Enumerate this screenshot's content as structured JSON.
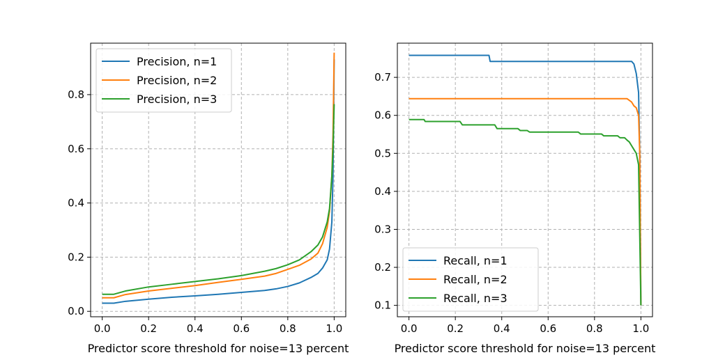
{
  "chart_data": [
    {
      "type": "line",
      "xlabel": "Predictor score threshold for noise=13 percent",
      "ylabel": "",
      "xlim": [
        -0.05,
        1.05
      ],
      "ylim": [
        -0.02,
        0.99
      ],
      "xticks": [
        0.0,
        0.2,
        0.4,
        0.6,
        0.8,
        1.0
      ],
      "xtick_labels": [
        "0.0",
        "0.2",
        "0.4",
        "0.6",
        "0.8",
        "1.0"
      ],
      "yticks": [
        0.0,
        0.2,
        0.4,
        0.6,
        0.8
      ],
      "ytick_labels": [
        "0.0",
        "0.2",
        "0.4",
        "0.6",
        "0.8"
      ],
      "grid": true,
      "legend_position": "upper-left",
      "series": [
        {
          "name": "Precision, n=1",
          "color": "#1f77b4",
          "x": [
            0.0,
            0.05,
            0.1,
            0.2,
            0.3,
            0.4,
            0.5,
            0.6,
            0.7,
            0.75,
            0.8,
            0.85,
            0.9,
            0.93,
            0.95,
            0.97,
            0.98,
            0.99,
            0.995,
            1.0
          ],
          "y": [
            0.03,
            0.03,
            0.037,
            0.045,
            0.052,
            0.057,
            0.063,
            0.07,
            0.077,
            0.083,
            0.092,
            0.105,
            0.125,
            0.14,
            0.16,
            0.19,
            0.23,
            0.33,
            0.5,
            0.93
          ]
        },
        {
          "name": "Precision, n=2",
          "color": "#ff7f0e",
          "x": [
            0.0,
            0.05,
            0.1,
            0.2,
            0.3,
            0.4,
            0.5,
            0.6,
            0.7,
            0.75,
            0.8,
            0.85,
            0.9,
            0.93,
            0.95,
            0.97,
            0.98,
            0.99,
            0.995,
            1.0
          ],
          "y": [
            0.05,
            0.05,
            0.062,
            0.075,
            0.085,
            0.095,
            0.107,
            0.118,
            0.13,
            0.14,
            0.155,
            0.17,
            0.193,
            0.215,
            0.25,
            0.31,
            0.37,
            0.5,
            0.65,
            0.955
          ]
        },
        {
          "name": "Precision, n=3",
          "color": "#2ca02c",
          "x": [
            0.0,
            0.05,
            0.1,
            0.2,
            0.3,
            0.4,
            0.5,
            0.6,
            0.7,
            0.75,
            0.8,
            0.85,
            0.9,
            0.93,
            0.95,
            0.97,
            0.98,
            0.99,
            0.995,
            1.0
          ],
          "y": [
            0.063,
            0.063,
            0.075,
            0.09,
            0.1,
            0.11,
            0.12,
            0.132,
            0.148,
            0.158,
            0.172,
            0.19,
            0.22,
            0.245,
            0.275,
            0.33,
            0.38,
            0.5,
            0.6,
            0.765
          ]
        }
      ]
    },
    {
      "type": "line",
      "xlabel": "Predictor score threshold for noise=13 percent",
      "ylabel": "",
      "xlim": [
        -0.05,
        1.05
      ],
      "ylim": [
        0.07,
        0.79
      ],
      "xticks": [
        0.0,
        0.2,
        0.4,
        0.6,
        0.8,
        1.0
      ],
      "xtick_labels": [
        "0.0",
        "0.2",
        "0.4",
        "0.6",
        "0.8",
        "1.0"
      ],
      "yticks": [
        0.1,
        0.2,
        0.3,
        0.4,
        0.5,
        0.6,
        0.7
      ],
      "ytick_labels": [
        "0.1",
        "0.2",
        "0.3",
        "0.4",
        "0.5",
        "0.6",
        "0.7"
      ],
      "grid": true,
      "legend_position": "lower-left",
      "series": [
        {
          "name": "Recall, n=1",
          "color": "#1f77b4",
          "x": [
            0.0,
            0.33,
            0.345,
            0.35,
            0.96,
            0.97,
            0.98,
            0.99,
            0.995,
            1.0
          ],
          "y": [
            0.758,
            0.758,
            0.758,
            0.742,
            0.742,
            0.735,
            0.71,
            0.66,
            0.5,
            0.1
          ]
        },
        {
          "name": "Recall, n=2",
          "color": "#ff7f0e",
          "x": [
            0.0,
            0.94,
            0.96,
            0.97,
            0.98,
            0.99,
            0.995,
            1.0
          ],
          "y": [
            0.644,
            0.644,
            0.635,
            0.625,
            0.62,
            0.6,
            0.5,
            0.1
          ]
        },
        {
          "name": "Recall, n=3",
          "color": "#2ca02c",
          "x": [
            0.0,
            0.065,
            0.07,
            0.22,
            0.23,
            0.37,
            0.38,
            0.47,
            0.48,
            0.51,
            0.52,
            0.73,
            0.74,
            0.83,
            0.84,
            0.9,
            0.91,
            0.93,
            0.94,
            0.95,
            0.96,
            0.97,
            0.98,
            0.99,
            1.0
          ],
          "y": [
            0.589,
            0.589,
            0.584,
            0.584,
            0.575,
            0.575,
            0.565,
            0.565,
            0.56,
            0.56,
            0.556,
            0.556,
            0.551,
            0.551,
            0.546,
            0.546,
            0.541,
            0.541,
            0.535,
            0.53,
            0.52,
            0.51,
            0.5,
            0.47,
            0.1
          ]
        }
      ]
    }
  ]
}
